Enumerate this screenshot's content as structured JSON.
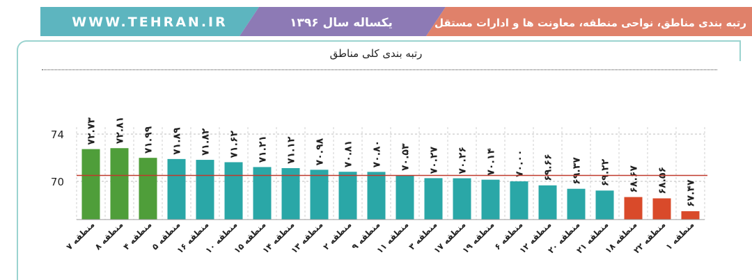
{
  "header": {
    "website": "WWW.TEHRAN.IR",
    "period": "یکساله سال ۱۳۹۶",
    "report_title": "رتبه بندی مناطق، نواحی منطقه، معاونت ها و ادارات مستقل",
    "colors": {
      "website_bg": "#5db5bf",
      "period_bg": "#8d7ab5",
      "title_bg": "#e0816a"
    }
  },
  "chart_data": {
    "type": "bar",
    "title": "رتبه بندی کلی مناطق",
    "xlabel": "",
    "ylabel": "",
    "ylim": [
      67.2,
      75.3
    ],
    "yticks": [
      {
        "value": 70,
        "label": "70"
      },
      {
        "value": 74,
        "label": "74"
      }
    ],
    "reference_line": 70.5,
    "grid": true,
    "categories": [
      "منطقه ۷",
      "منطقه ۸",
      "منطقه ۴",
      "منطقه ۵",
      "منطقه ۱۶",
      "منطقه ۱۰",
      "منطقه ۱۵",
      "منطقه ۱۴",
      "منطقه ۱۳",
      "منطقه ۲",
      "منطقه ۹",
      "منطقه ۱۱",
      "منطقه ۳",
      "منطقه ۱۷",
      "منطقه ۱۹",
      "منطقه ۶",
      "منطقه ۱۲",
      "منطقه ۲۰",
      "منطقه ۲۱",
      "منطقه ۱۸",
      "منطقه ۲۲",
      "منطقه ۱"
    ],
    "values": [
      72.73,
      72.81,
      71.99,
      71.89,
      71.82,
      71.62,
      71.21,
      71.12,
      70.98,
      70.81,
      70.8,
      70.53,
      70.27,
      70.26,
      70.14,
      70.0,
      69.66,
      69.37,
      69.22,
      68.67,
      68.56,
      67.47
    ],
    "value_labels": [
      "۷۲.۷۳",
      "۷۲.۸۱",
      "۷۱.۹۹",
      "۷۱.۸۹",
      "۷۱.۸۲",
      "۷۱.۶۲",
      "۷۱.۲۱",
      "۷۱.۱۲",
      "۷۰.۹۸",
      "۷۰.۸۱",
      "۷۰.۸۰",
      "۷۰.۵۳",
      "۷۰.۲۷",
      "۷۰.۲۶",
      "۷۰.۱۴",
      "۷۰.۰۰",
      "۶۹.۶۶",
      "۶۹.۳۷",
      "۶۹.۲۲",
      "۶۸.۶۷",
      "۶۸.۵۶",
      "۶۷.۴۷"
    ],
    "bar_colors": [
      "#4f9e3a",
      "#4f9e3a",
      "#4f9e3a",
      "#2aa7a7",
      "#2aa7a7",
      "#2aa7a7",
      "#2aa7a7",
      "#2aa7a7",
      "#2aa7a7",
      "#2aa7a7",
      "#2aa7a7",
      "#2aa7a7",
      "#2aa7a7",
      "#2aa7a7",
      "#2aa7a7",
      "#2aa7a7",
      "#2aa7a7",
      "#2aa7a7",
      "#2aa7a7",
      "#d94a2a",
      "#d94a2a",
      "#d94a2a"
    ],
    "reference_color": "#c0392b"
  }
}
